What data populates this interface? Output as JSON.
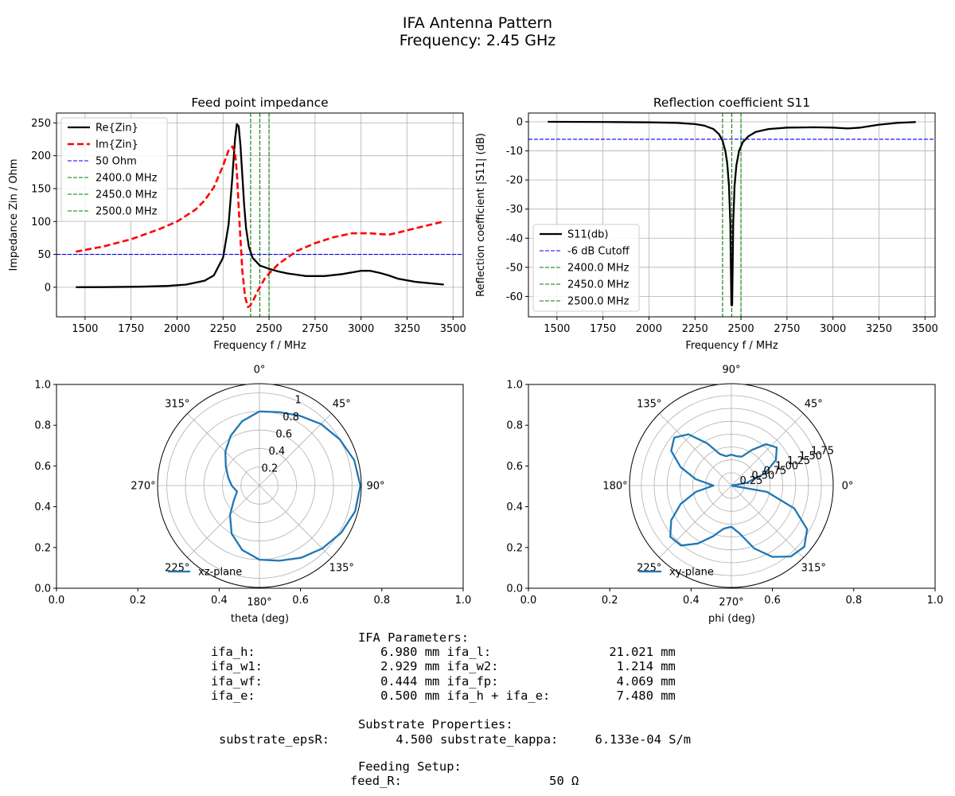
{
  "figure": {
    "title_line1": "IFA Antenna Pattern",
    "title_line2": "Frequency: 2.45 GHz"
  },
  "colors": {
    "re": "#000000",
    "im": "#ff0000",
    "ref": "#0000ff",
    "marker": "#008000",
    "polar": "#1f77b4",
    "grid": "#b0b0b0"
  },
  "chart_data": [
    {
      "id": "impedance",
      "type": "line",
      "title": "Feed point impedance",
      "xlabel": "Frequency f / MHz",
      "ylabel": "Impedance Zin / Ohm",
      "xlim": [
        1345,
        3555
      ],
      "ylim": [
        -45,
        265
      ],
      "xticks": [
        1500,
        1750,
        2000,
        2250,
        2500,
        2750,
        3000,
        3250,
        3500
      ],
      "yticks": [
        0,
        50,
        100,
        150,
        200,
        250
      ],
      "grid": true,
      "legend_position": "top-left",
      "hlines": [
        {
          "name": "50 Ohm",
          "y": 50
        }
      ],
      "vlines": [
        {
          "name": "2400.0 MHz",
          "x": 2400
        },
        {
          "name": "2450.0 MHz",
          "x": 2450
        },
        {
          "name": "2500.0 MHz",
          "x": 2500
        }
      ],
      "series": [
        {
          "name": "Re{Zin}",
          "x": [
            1450,
            1600,
            1800,
            1950,
            2050,
            2150,
            2200,
            2250,
            2280,
            2300,
            2315,
            2325,
            2335,
            2345,
            2355,
            2365,
            2375,
            2390,
            2410,
            2450,
            2500,
            2550,
            2600,
            2650,
            2700,
            2800,
            2900,
            3000,
            3050,
            3100,
            3150,
            3200,
            3300,
            3450
          ],
          "values": [
            0,
            0.2,
            0.8,
            2,
            4,
            10,
            18,
            45,
            95,
            165,
            225,
            248,
            245,
            215,
            170,
            125,
            90,
            62,
            45,
            33,
            28,
            24,
            21,
            19,
            17,
            17,
            20,
            25,
            25,
            22,
            18,
            13,
            8,
            4
          ]
        },
        {
          "name": "Im{Zin}",
          "x": [
            1450,
            1600,
            1750,
            1900,
            2000,
            2100,
            2150,
            2200,
            2250,
            2280,
            2300,
            2315,
            2325,
            2340,
            2355,
            2370,
            2385,
            2395,
            2410,
            2440,
            2480,
            2550,
            2650,
            2750,
            2850,
            2950,
            3050,
            3150,
            3200,
            3300,
            3450
          ],
          "values": [
            54,
            62,
            73,
            88,
            100,
            118,
            132,
            152,
            185,
            208,
            214,
            205,
            175,
            95,
            25,
            -15,
            -30,
            -29,
            -22,
            -5,
            15,
            35,
            55,
            67,
            76,
            82,
            82,
            80,
            83,
            90,
            100
          ]
        }
      ]
    },
    {
      "id": "s11",
      "type": "line",
      "title": "Reflection coefficient S11",
      "xlabel": "Frequency f / MHz",
      "ylabel": "Reflection coefficient |S11| (dB)",
      "xlim": [
        1345,
        3555
      ],
      "ylim": [
        -67,
        3
      ],
      "xticks": [
        1500,
        1750,
        2000,
        2250,
        2500,
        2750,
        3000,
        3250,
        3500
      ],
      "yticks": [
        0,
        -10,
        -20,
        -30,
        -40,
        -50,
        -60
      ],
      "grid": true,
      "legend_position": "bottom-left",
      "hlines": [
        {
          "name": "-6 dB Cutoff",
          "y": -6
        }
      ],
      "vlines": [
        {
          "name": "2400.0 MHz",
          "x": 2400
        },
        {
          "name": "2450.0 MHz",
          "x": 2450
        },
        {
          "name": "2500.0 MHz",
          "x": 2500
        }
      ],
      "series": [
        {
          "name": "S11(db)",
          "x": [
            1450,
            1800,
            2000,
            2150,
            2250,
            2300,
            2350,
            2380,
            2400,
            2415,
            2425,
            2435,
            2442,
            2448,
            2452,
            2458,
            2465,
            2475,
            2490,
            2510,
            2540,
            2580,
            2650,
            2750,
            2900,
            3000,
            3080,
            3150,
            3250,
            3350,
            3450
          ],
          "values": [
            0,
            -0.1,
            -0.2,
            -0.4,
            -0.8,
            -1.3,
            -2.5,
            -4.2,
            -6.5,
            -10,
            -14,
            -22,
            -35,
            -63,
            -63,
            -35,
            -22,
            -15,
            -10,
            -7,
            -5,
            -3.5,
            -2.5,
            -2,
            -1.9,
            -2,
            -2.3,
            -2,
            -1,
            -0.4,
            -0.1
          ]
        }
      ]
    },
    {
      "id": "xz-pattern",
      "type": "line",
      "projection": "polar",
      "xlabel": "theta (deg)",
      "zero_location": "top",
      "direction": "clockwise",
      "rlim": [
        0,
        1.1
      ],
      "rticks": [
        0.2,
        0.4,
        0.6,
        0.8,
        1.0
      ],
      "angle_ticks": [
        0,
        45,
        90,
        135,
        180,
        225,
        270,
        315
      ],
      "legend_position": "lower-center",
      "cartesian_frame": {
        "xlim": [
          0,
          1
        ],
        "ylim": [
          0,
          1
        ],
        "xticks": [
          0.0,
          0.2,
          0.4,
          0.6,
          0.8,
          1.0
        ],
        "yticks": [
          0.0,
          0.2,
          0.4,
          0.6,
          0.8,
          1.0
        ]
      },
      "series": [
        {
          "name": "xz-plane",
          "theta_deg": [
            0,
            15,
            30,
            45,
            60,
            75,
            90,
            105,
            120,
            135,
            150,
            165,
            180,
            195,
            210,
            225,
            240,
            255,
            270,
            285,
            300,
            315,
            330,
            345,
            360
          ],
          "r": [
            0.8,
            0.82,
            0.87,
            0.94,
            1.0,
            1.06,
            1.09,
            1.07,
            1.02,
            0.96,
            0.9,
            0.84,
            0.8,
            0.72,
            0.6,
            0.45,
            0.32,
            0.25,
            0.3,
            0.35,
            0.42,
            0.52,
            0.62,
            0.72,
            0.8
          ]
        }
      ]
    },
    {
      "id": "xy-pattern",
      "type": "line",
      "projection": "polar",
      "xlabel": "phi (deg)",
      "zero_location": "right",
      "direction": "counterclockwise",
      "rlim": [
        0,
        1.98
      ],
      "rticks": [
        0.25,
        0.5,
        0.75,
        1.0,
        1.25,
        1.5,
        1.75
      ],
      "rtick_labels": [
        "0.25",
        "0.50",
        "0.75",
        "1.00",
        "1.25",
        "1.50",
        "1.75"
      ],
      "angle_ticks": [
        0,
        45,
        90,
        135,
        180,
        225,
        270,
        315
      ],
      "legend_position": "lower-left",
      "cartesian_frame": {
        "xlim": [
          0,
          1
        ],
        "ylim": [
          0,
          1
        ],
        "xticks": [
          0.0,
          0.2,
          0.4,
          0.6,
          0.8,
          1.0
        ],
        "yticks": [
          0.0,
          0.2,
          0.4,
          0.6,
          0.8,
          1.0
        ]
      },
      "series": [
        {
          "name": "xy-plane",
          "phi_deg": [
            0,
            10,
            20,
            30,
            40,
            50,
            60,
            70,
            80,
            90,
            100,
            110,
            120,
            130,
            140,
            150,
            160,
            170,
            180,
            190,
            200,
            210,
            220,
            230,
            240,
            250,
            260,
            270,
            280,
            290,
            300,
            310,
            320,
            330,
            340,
            350,
            360
          ],
          "r": [
            0,
            0.3,
            0.7,
            1.0,
            1.15,
            1.05,
            0.8,
            0.6,
            0.58,
            0.6,
            0.58,
            0.65,
            0.95,
            1.3,
            1.45,
            1.35,
            1.05,
            0.7,
            0.35,
            0.7,
            1.05,
            1.35,
            1.55,
            1.52,
            1.3,
            1.05,
            0.85,
            0.8,
            0.95,
            1.3,
            1.6,
            1.8,
            1.85,
            1.7,
            1.3,
            0.7,
            0
          ]
        }
      ]
    }
  ],
  "parameters": {
    "ifa_header": "IFA Parameters:",
    "ifa_rows": [
      "ifa_h:                 6.980 mm ifa_l:                21.021 mm",
      "ifa_w1:                2.929 mm ifa_w2:                1.214 mm",
      "ifa_wf:                0.444 mm ifa_fp:                4.069 mm",
      "ifa_e:                 0.500 mm ifa_h + ifa_e:         7.480 mm"
    ],
    "substrate_header": "Substrate Properties:",
    "substrate_row": "substrate_epsR:         4.500 substrate_kappa:     6.133e-04 S/m",
    "feed_header": "Feeding Setup:",
    "feed_row": "feed_R:                    50 Ω"
  }
}
